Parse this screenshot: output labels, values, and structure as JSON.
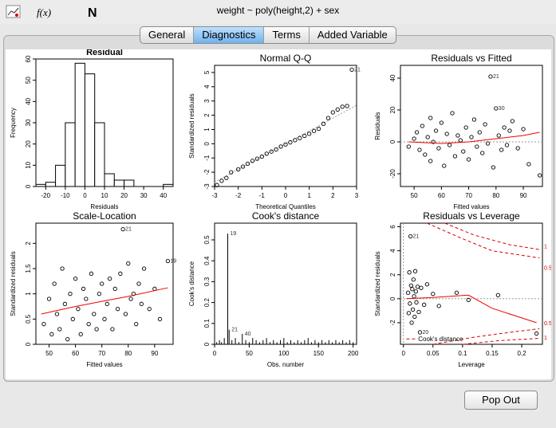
{
  "window": {
    "title": "weight ~ poly(height,2) + sex"
  },
  "toolbar": {
    "fx_label": "f(x)",
    "n_label": "N"
  },
  "tabs": [
    "General",
    "Diagnostics",
    "Terms",
    "Added Variable"
  ],
  "active_tab": 1,
  "buttons": {
    "popout": "Pop Out"
  },
  "chart_data": [
    {
      "type": "bar",
      "title": "Residual",
      "xlabel": "Residuals",
      "ylabel": "Frequency",
      "x_ticks": [
        -20,
        -10,
        0,
        10,
        20,
        30,
        40
      ],
      "y_ticks": [
        0,
        10,
        20,
        30,
        40,
        50,
        60
      ],
      "xlim": [
        -25,
        45
      ],
      "ylim": [
        0,
        60
      ],
      "bins": [
        [
          -25,
          -20,
          1
        ],
        [
          -20,
          -15,
          2
        ],
        [
          -15,
          -10,
          10
        ],
        [
          -10,
          -5,
          30
        ],
        [
          -5,
          0,
          58
        ],
        [
          0,
          5,
          53
        ],
        [
          5,
          10,
          30
        ],
        [
          10,
          15,
          6
        ],
        [
          15,
          20,
          3
        ],
        [
          20,
          25,
          3
        ],
        [
          25,
          30,
          0
        ],
        [
          30,
          35,
          0
        ],
        [
          35,
          40,
          0
        ],
        [
          40,
          45,
          1
        ]
      ]
    },
    {
      "type": "scatter",
      "title": "Normal Q-Q",
      "xlabel": "Theoretical Quantiles",
      "ylabel": "Standardized residuals",
      "x_ticks": [
        -3,
        -2,
        -1,
        0,
        1,
        2,
        3
      ],
      "y_ticks": [
        -3,
        -2,
        -1,
        0,
        1,
        2,
        3,
        4,
        5
      ],
      "xlim": [
        -3,
        3
      ],
      "ylim": [
        -3,
        5.5
      ],
      "annotations": [
        {
          "label": "21",
          "x": 2.8,
          "y": 5.2
        }
      ],
      "points": [
        [
          -2.9,
          -2.9
        ],
        [
          -2.7,
          -2.6
        ],
        [
          -2.5,
          -2.4
        ],
        [
          -2.3,
          -2.0
        ],
        [
          -2.0,
          -1.8
        ],
        [
          -1.8,
          -1.6
        ],
        [
          -1.6,
          -1.4
        ],
        [
          -1.4,
          -1.2
        ],
        [
          -1.2,
          -1.05
        ],
        [
          -1.0,
          -0.9
        ],
        [
          -0.8,
          -0.7
        ],
        [
          -0.6,
          -0.55
        ],
        [
          -0.4,
          -0.4
        ],
        [
          -0.2,
          -0.2
        ],
        [
          0.0,
          -0.05
        ],
        [
          0.2,
          0.1
        ],
        [
          0.4,
          0.25
        ],
        [
          0.6,
          0.4
        ],
        [
          0.8,
          0.55
        ],
        [
          1.0,
          0.7
        ],
        [
          1.2,
          0.9
        ],
        [
          1.4,
          1.05
        ],
        [
          1.6,
          1.4
        ],
        [
          1.8,
          1.8
        ],
        [
          2.0,
          2.2
        ],
        [
          2.2,
          2.4
        ],
        [
          2.4,
          2.6
        ],
        [
          2.6,
          2.65
        ],
        [
          2.8,
          5.2
        ]
      ]
    },
    {
      "type": "scatter",
      "title": "Residuals vs Fitted",
      "xlabel": "Fitted values",
      "ylabel": "Residuals",
      "x_ticks": [
        50,
        60,
        70,
        80,
        90
      ],
      "y_ticks": [
        -20,
        0,
        20,
        40
      ],
      "xlim": [
        45,
        97
      ],
      "ylim": [
        -28,
        48
      ],
      "annotations": [
        {
          "label": "21",
          "x": 78,
          "y": 41
        },
        {
          "label": "30",
          "x": 80,
          "y": 21
        }
      ],
      "smooth": [
        [
          48,
          0
        ],
        [
          60,
          -1
        ],
        [
          70,
          0
        ],
        [
          80,
          2
        ],
        [
          90,
          4
        ],
        [
          96,
          6
        ]
      ],
      "points": [
        [
          48,
          -3
        ],
        [
          50,
          2
        ],
        [
          51,
          6
        ],
        [
          52,
          -5
        ],
        [
          53,
          10
        ],
        [
          54,
          -8
        ],
        [
          55,
          3
        ],
        [
          56,
          15
        ],
        [
          56,
          -12
        ],
        [
          57,
          0
        ],
        [
          58,
          7
        ],
        [
          59,
          -4
        ],
        [
          60,
          12
        ],
        [
          61,
          -15
        ],
        [
          62,
          5
        ],
        [
          63,
          -2
        ],
        [
          64,
          18
        ],
        [
          65,
          -9
        ],
        [
          66,
          4
        ],
        [
          67,
          1
        ],
        [
          68,
          -6
        ],
        [
          69,
          9
        ],
        [
          70,
          -11
        ],
        [
          71,
          3
        ],
        [
          72,
          14
        ],
        [
          73,
          -3
        ],
        [
          74,
          6
        ],
        [
          75,
          -7
        ],
        [
          76,
          11
        ],
        [
          77,
          -1
        ],
        [
          78,
          41
        ],
        [
          79,
          -16
        ],
        [
          80,
          21
        ],
        [
          81,
          4
        ],
        [
          82,
          -5
        ],
        [
          83,
          9
        ],
        [
          84,
          -2
        ],
        [
          85,
          7
        ],
        [
          86,
          13
        ],
        [
          88,
          -4
        ],
        [
          90,
          8
        ],
        [
          92,
          -14
        ],
        [
          96,
          -21
        ]
      ]
    },
    {
      "type": "scatter",
      "title": "Scale-Location",
      "xlabel": "Fitted values",
      "ylabel": "Standardized residuals",
      "x_ticks": [
        50,
        60,
        70,
        80,
        90
      ],
      "y_ticks": [
        0.0,
        0.5,
        1.0,
        1.5,
        2.0
      ],
      "xlim": [
        45,
        97
      ],
      "ylim": [
        0,
        2.4
      ],
      "annotations": [
        {
          "label": "21",
          "x": 78,
          "y": 2.28
        },
        {
          "label": "19",
          "x": 95,
          "y": 1.65
        }
      ],
      "smooth": [
        [
          47,
          0.6
        ],
        [
          60,
          0.75
        ],
        [
          70,
          0.85
        ],
        [
          80,
          0.95
        ],
        [
          95,
          1.12
        ]
      ],
      "points": [
        [
          48,
          0.4
        ],
        [
          50,
          0.9
        ],
        [
          51,
          0.2
        ],
        [
          52,
          1.2
        ],
        [
          53,
          0.6
        ],
        [
          54,
          0.3
        ],
        [
          55,
          1.5
        ],
        [
          56,
          0.8
        ],
        [
          57,
          0.1
        ],
        [
          58,
          1.0
        ],
        [
          59,
          0.5
        ],
        [
          60,
          1.3
        ],
        [
          61,
          0.7
        ],
        [
          62,
          0.2
        ],
        [
          63,
          1.1
        ],
        [
          64,
          0.9
        ],
        [
          65,
          0.4
        ],
        [
          66,
          1.4
        ],
        [
          67,
          0.6
        ],
        [
          68,
          0.3
        ],
        [
          69,
          1.0
        ],
        [
          70,
          1.2
        ],
        [
          71,
          0.5
        ],
        [
          72,
          0.8
        ],
        [
          73,
          1.3
        ],
        [
          74,
          0.3
        ],
        [
          75,
          1.1
        ],
        [
          76,
          0.7
        ],
        [
          77,
          1.4
        ],
        [
          78,
          2.28
        ],
        [
          79,
          0.6
        ],
        [
          80,
          1.6
        ],
        [
          81,
          0.9
        ],
        [
          82,
          1.0
        ],
        [
          83,
          0.4
        ],
        [
          84,
          1.2
        ],
        [
          85,
          0.8
        ],
        [
          86,
          1.5
        ],
        [
          88,
          0.7
        ],
        [
          90,
          1.1
        ],
        [
          92,
          0.5
        ],
        [
          95,
          1.65
        ]
      ]
    },
    {
      "type": "bar",
      "title": "Cook's distance",
      "xlabel": "Obs. number",
      "ylabel": "Cook's distance",
      "x_ticks": [
        0,
        50,
        100,
        150,
        200
      ],
      "y_ticks": [
        0.0,
        0.1,
        0.2,
        0.3,
        0.4,
        0.5
      ],
      "xlim": [
        0,
        205
      ],
      "ylim": [
        0,
        0.58
      ],
      "annotations": [
        {
          "label": "19",
          "x": 19,
          "y": 0.53
        },
        {
          "label": "21",
          "x": 21,
          "y": 0.07
        },
        {
          "label": "40",
          "x": 40,
          "y": 0.05
        }
      ],
      "x": [
        3,
        7,
        10,
        14,
        19,
        21,
        25,
        30,
        35,
        40,
        45,
        50,
        55,
        60,
        65,
        70,
        75,
        80,
        85,
        90,
        95,
        100,
        105,
        110,
        115,
        120,
        125,
        130,
        135,
        140,
        145,
        150,
        155,
        160,
        165,
        170,
        175,
        180,
        185,
        190,
        195,
        200
      ],
      "values": [
        0.01,
        0.02,
        0.01,
        0.03,
        0.53,
        0.07,
        0.02,
        0.03,
        0.01,
        0.05,
        0.02,
        0.01,
        0.03,
        0.02,
        0.01,
        0.02,
        0.03,
        0.01,
        0.02,
        0.01,
        0.02,
        0.03,
        0.01,
        0.02,
        0.01,
        0.02,
        0.01,
        0.02,
        0.03,
        0.01,
        0.02,
        0.01,
        0.02,
        0.01,
        0.02,
        0.01,
        0.02,
        0.01,
        0.02,
        0.01,
        0.02,
        0.01
      ]
    },
    {
      "type": "scatter",
      "title": "Residuals vs Leverage",
      "xlabel": "Leverage",
      "ylabel": "Standardized residuals",
      "x_ticks": [
        0.0,
        0.05,
        0.1,
        0.15,
        0.2
      ],
      "y_ticks": [
        -2,
        0,
        2,
        4,
        6
      ],
      "xlim": [
        -0.005,
        0.235
      ],
      "ylim": [
        -3.8,
        6.3
      ],
      "legend": "Cook's distance",
      "cook_labels": [
        "1",
        "0.5",
        "0.5",
        "1"
      ],
      "annotations": [
        {
          "label": "21",
          "x": 0.012,
          "y": 5.2
        },
        {
          "label": "20",
          "x": 0.028,
          "y": -2.8
        }
      ],
      "smooth": [
        [
          0.005,
          0.0
        ],
        [
          0.05,
          0.1
        ],
        [
          0.11,
          0.3
        ],
        [
          0.15,
          -0.8
        ],
        [
          0.225,
          -2.0
        ]
      ],
      "points": [
        [
          0.008,
          0.5
        ],
        [
          0.009,
          -1.2
        ],
        [
          0.01,
          2.2
        ],
        [
          0.011,
          -0.4
        ],
        [
          0.012,
          5.2
        ],
        [
          0.013,
          1.1
        ],
        [
          0.014,
          -2.0
        ],
        [
          0.015,
          0.8
        ],
        [
          0.016,
          -0.9
        ],
        [
          0.017,
          1.6
        ],
        [
          0.018,
          0.2
        ],
        [
          0.019,
          -1.5
        ],
        [
          0.02,
          2.3
        ],
        [
          0.021,
          0.6
        ],
        [
          0.022,
          -0.3
        ],
        [
          0.024,
          1.0
        ],
        [
          0.026,
          -1.1
        ],
        [
          0.028,
          -2.8
        ],
        [
          0.03,
          0.9
        ],
        [
          0.035,
          -0.5
        ],
        [
          0.04,
          1.2
        ],
        [
          0.05,
          0.4
        ],
        [
          0.06,
          -0.6
        ],
        [
          0.09,
          0.5
        ],
        [
          0.11,
          -0.1
        ],
        [
          0.16,
          0.3
        ],
        [
          0.225,
          -2.9
        ]
      ]
    }
  ]
}
